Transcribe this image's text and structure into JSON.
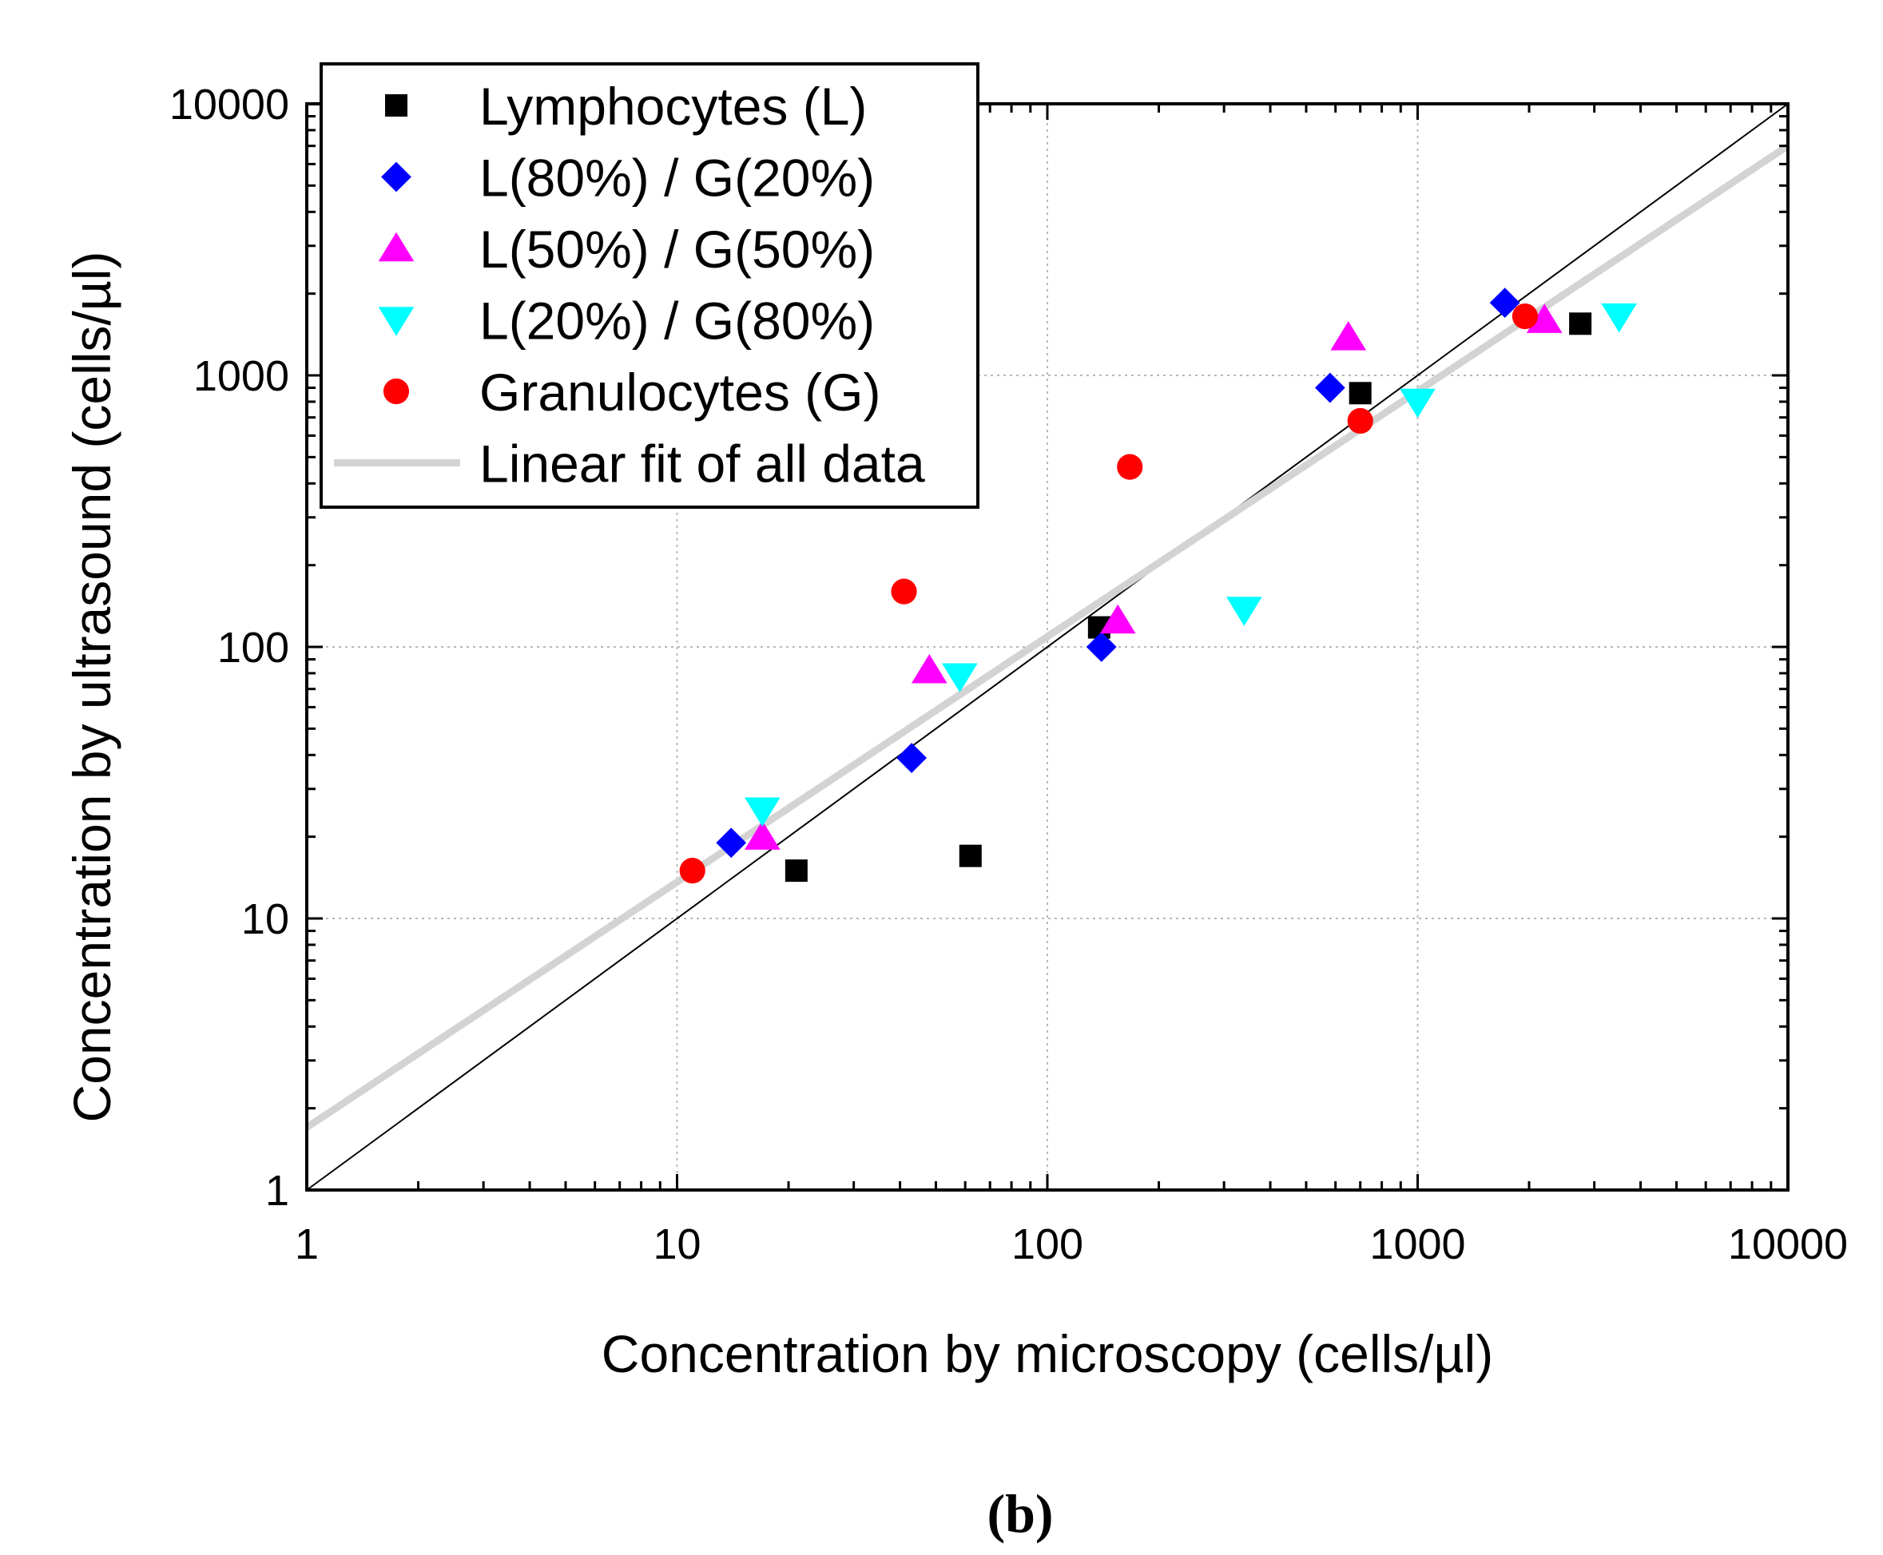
{
  "chart_data": {
    "type": "scatter",
    "xscale": "log",
    "yscale": "log",
    "xlim": [
      1,
      10000
    ],
    "ylim": [
      1,
      10000
    ],
    "xlabel": "Concentration by microscopy (cells/µl)",
    "ylabel": "Concentration by ultrasound (cells/µl)",
    "xticks": [
      1,
      10,
      100,
      1000,
      10000
    ],
    "yticks": [
      1,
      10,
      100,
      1000,
      10000
    ],
    "xtick_labels": [
      "1",
      "10",
      "100",
      "1000",
      "10000"
    ],
    "ytick_labels": [
      "1",
      "10",
      "100",
      "1000",
      "10000"
    ],
    "grid": true,
    "legend_position": "top-left",
    "caption": "(b)",
    "series": [
      {
        "name": "Lymphocytes (L)",
        "marker": "square",
        "color": "#000000",
        "points": [
          [
            21,
            15
          ],
          [
            62,
            17
          ],
          [
            138,
            118
          ],
          [
            700,
            860
          ],
          [
            2750,
            1550
          ]
        ]
      },
      {
        "name": "L(80%) / G(20%)",
        "marker": "diamond",
        "color": "#0000ff",
        "points": [
          [
            14,
            19
          ],
          [
            43,
            39
          ],
          [
            140,
            100
          ],
          [
            580,
            900
          ],
          [
            1720,
            1850
          ]
        ]
      },
      {
        "name": "L(50%) / G(50%)",
        "marker": "triangle-up",
        "color": "#ff00ff",
        "points": [
          [
            17,
            20
          ],
          [
            48,
            82
          ],
          [
            155,
            125
          ],
          [
            650,
            1380
          ],
          [
            2200,
            1600
          ]
        ]
      },
      {
        "name": "L(20%) / G(80%)",
        "marker": "triangle-down",
        "color": "#00ffff",
        "points": [
          [
            17,
            25
          ],
          [
            58,
            78
          ],
          [
            340,
            137
          ],
          [
            1000,
            800
          ],
          [
            3500,
            1650
          ]
        ]
      },
      {
        "name": "Granulocytes (G)",
        "marker": "circle",
        "color": "#ff0000",
        "points": [
          [
            11,
            15
          ],
          [
            41,
            160
          ],
          [
            167,
            460
          ],
          [
            700,
            680
          ],
          [
            1950,
            1650
          ]
        ]
      }
    ],
    "fit": {
      "name": "Linear fit of all data",
      "color": "#d3d3d3",
      "x": [
        1,
        10000
      ],
      "y": [
        1.7,
        7000
      ]
    },
    "identity_line": {
      "x": [
        1,
        10000
      ],
      "y": [
        1,
        10000
      ],
      "color": "#000000"
    }
  }
}
